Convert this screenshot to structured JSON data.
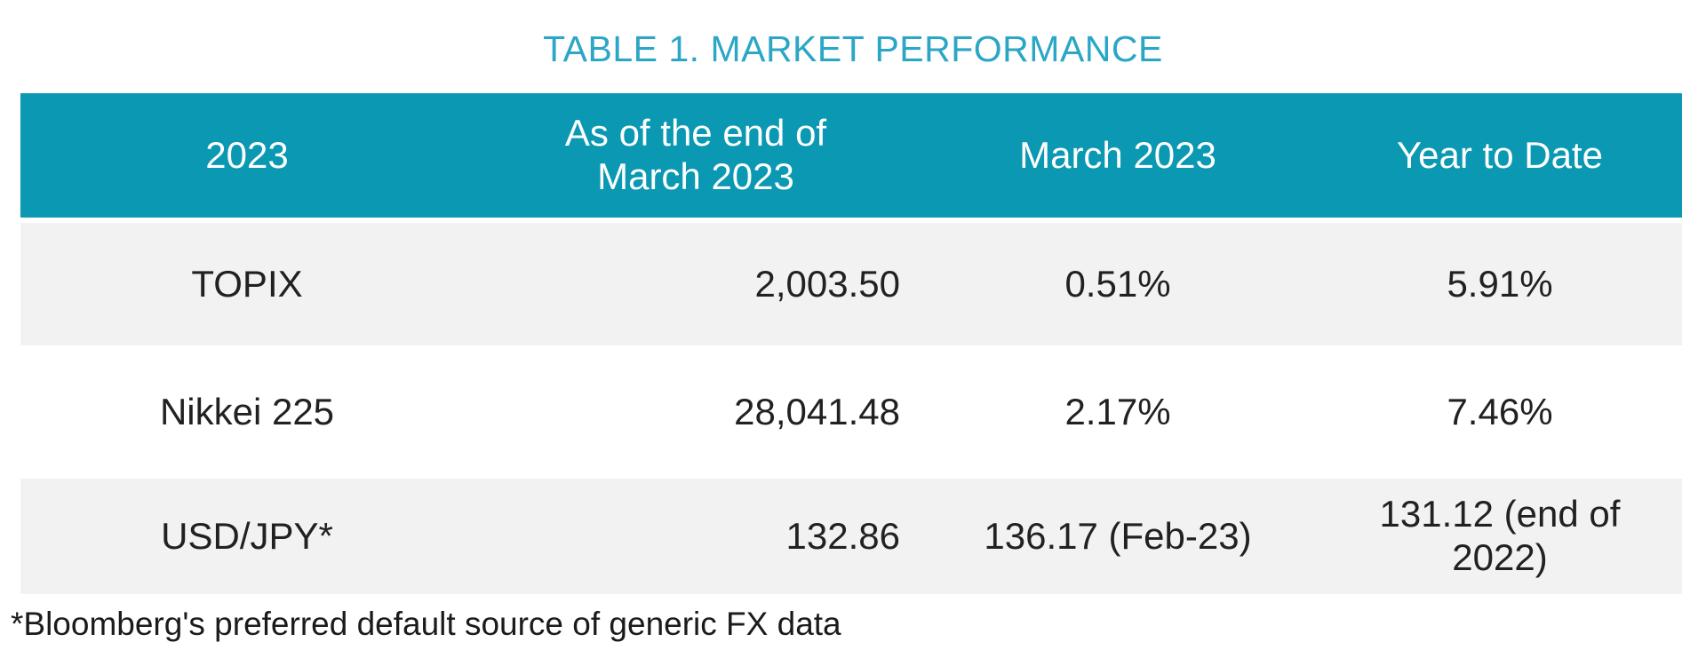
{
  "title": "TABLE 1. MARKET PERFORMANCE",
  "colors": {
    "header_bg": "#0A98B2",
    "header_text": "#FFFFFF",
    "title_text": "#2BA6C7",
    "row_alt_bg": "#F2F2F2",
    "body_text": "#212121"
  },
  "table": {
    "columns": [
      {
        "label": "2023"
      },
      {
        "label": "As of the end of\nMarch 2023"
      },
      {
        "label": "March 2023"
      },
      {
        "label": "Year to Date"
      }
    ],
    "rows": [
      {
        "name": "TOPIX",
        "end_of_march": "2,003.50",
        "march_2023": "0.51%",
        "ytd": "5.91%"
      },
      {
        "name": "Nikkei 225",
        "end_of_march": "28,041.48",
        "march_2023": "2.17%",
        "ytd": "7.46%"
      },
      {
        "name": "USD/JPY*",
        "end_of_march": "132.86",
        "march_2023": "136.17 (Feb-23)",
        "ytd": "131.12 (end of\n2022)"
      }
    ]
  },
  "footnote": "*Bloomberg's preferred default source of generic FX data",
  "chart_data": {
    "type": "table",
    "title": "TABLE 1. MARKET PERFORMANCE",
    "columns": [
      "2023",
      "As of the end of March 2023",
      "March 2023",
      "Year to Date"
    ],
    "rows": [
      [
        "TOPIX",
        "2,003.50",
        "0.51%",
        "5.91%"
      ],
      [
        "Nikkei 225",
        "28,041.48",
        "2.17%",
        "7.46%"
      ],
      [
        "USD/JPY*",
        "132.86",
        "136.17 (Feb-23)",
        "131.12 (end of 2022)"
      ]
    ],
    "footnote": "*Bloomberg's preferred default source of generic FX data"
  }
}
